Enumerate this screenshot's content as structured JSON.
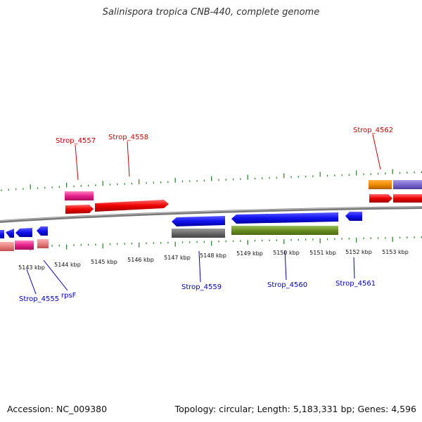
{
  "title": "Salinispora tropica CNB-440, complete genome",
  "footer": {
    "accession": "Accession: NC_009380",
    "summary": "Topology: circular; Length: 5,183,331 bp; Genes: 4,596"
  },
  "colors": {
    "backbone": "#808080",
    "tick": "#2e8b2e",
    "forward_label": "#cc0000",
    "reverse_label": "#0000bb"
  },
  "scale_labels": [
    "5143 kbp",
    "5144 kbp",
    "5145 kbp",
    "5146 kbp",
    "5147 kbp",
    "5148 kbp",
    "5149 kbp",
    "5150 kbp",
    "5151 kbp",
    "5152 kbp",
    "5153 kbp"
  ],
  "forward_gene_labels": [
    "Strop_4557",
    "Strop_4558",
    "Strop_4562"
  ],
  "reverse_gene_labels": [
    "Strop_4555",
    "rpsF",
    "Strop_4559",
    "Strop_4560",
    "Strop_4561"
  ]
}
